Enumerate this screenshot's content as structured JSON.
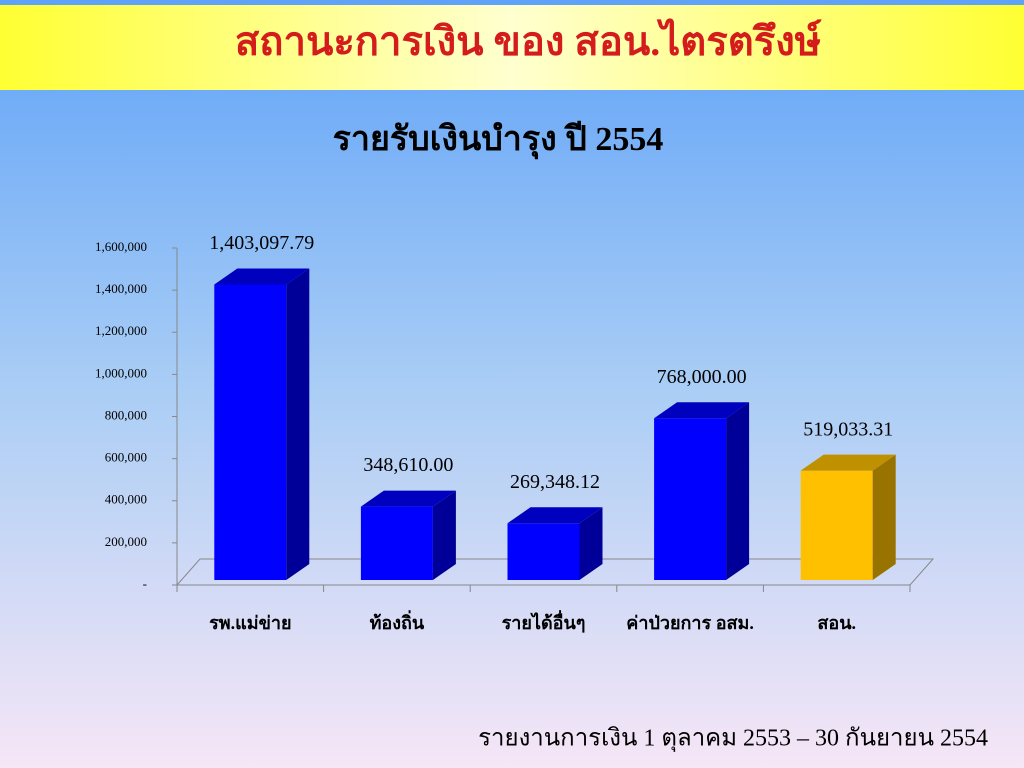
{
  "header": {
    "title": "สถานะการเงิน ของ สอน.ไตรตรึงษ์"
  },
  "chart_data": {
    "type": "bar3d",
    "title": "รายรับเงินบำรุง ปี 2554",
    "categories": [
      "รพ.แม่ข่าย",
      "ท้องถิ่น",
      "รายได้อื่นๆ",
      "ค่าป่วยการ อสม.",
      "สอน."
    ],
    "values": [
      1403097.79,
      348610,
      269348.12,
      768000,
      519033.31
    ],
    "value_labels": [
      "1,403,097.79",
      "348,610.00",
      "269,348.12",
      "768,000.00",
      "519,033.31"
    ],
    "colors": [
      "#0000ff",
      "#0000ff",
      "#0000ff",
      "#0000ff",
      "#ffc000"
    ],
    "ylim": [
      0,
      1600000
    ],
    "yticks": [
      {
        "value": 0,
        "label": "-"
      },
      {
        "value": 200000,
        "label": "200,000"
      },
      {
        "value": 400000,
        "label": "400,000"
      },
      {
        "value": 600000,
        "label": "600,000"
      },
      {
        "value": 800000,
        "label": "800,000"
      },
      {
        "value": 1000000,
        "label": "1,000,000"
      },
      {
        "value": 1200000,
        "label": "1,200,000"
      },
      {
        "value": 1400000,
        "label": "1,400,000"
      },
      {
        "value": 1600000,
        "label": "1,600,000"
      }
    ]
  },
  "footer": {
    "text": "รายงานการเงิน 1 ตุลาคม 2553 – 30 กันยายน 2554"
  }
}
